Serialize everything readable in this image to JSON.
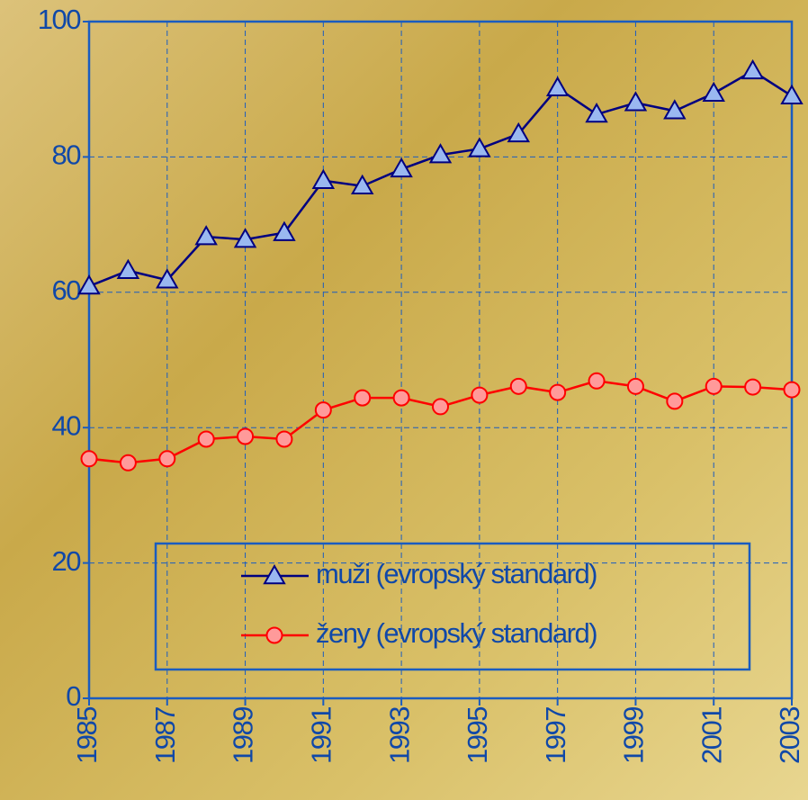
{
  "chart_data": {
    "type": "line",
    "x": [
      1985,
      1986,
      1987,
      1988,
      1989,
      1990,
      1991,
      1992,
      1993,
      1994,
      1995,
      1996,
      1997,
      1998,
      1999,
      2000,
      2001,
      2002,
      2003
    ],
    "series": [
      {
        "name": "muži (evropský standard)",
        "color": "#000080",
        "marker": "triangle",
        "marker_fill": "#9ab8f0",
        "values": [
          60.9,
          63.2,
          61.8,
          68.2,
          67.8,
          68.8,
          76.5,
          75.7,
          78.2,
          80.3,
          81.2,
          83.4,
          90.2,
          86.3,
          88.0,
          86.8,
          89.4,
          92.7,
          89.0
        ]
      },
      {
        "name": "ženy (evropský standard)",
        "color": "#ff0000",
        "marker": "circle",
        "marker_fill": "#ff9a9a",
        "values": [
          35.4,
          34.8,
          35.4,
          38.3,
          38.7,
          38.3,
          42.6,
          44.4,
          44.4,
          43.1,
          44.8,
          46.1,
          45.2,
          46.9,
          46.1,
          43.9,
          46.1,
          46.0,
          45.6
        ]
      }
    ],
    "xlim": [
      1985,
      2003
    ],
    "xticks": [
      1985,
      1987,
      1989,
      1991,
      1993,
      1995,
      1997,
      1999,
      2001,
      2003
    ],
    "ylim": [
      0,
      100
    ],
    "yticks": [
      0,
      20,
      40,
      60,
      80,
      100
    ],
    "grid": true,
    "legend": "bottom"
  }
}
